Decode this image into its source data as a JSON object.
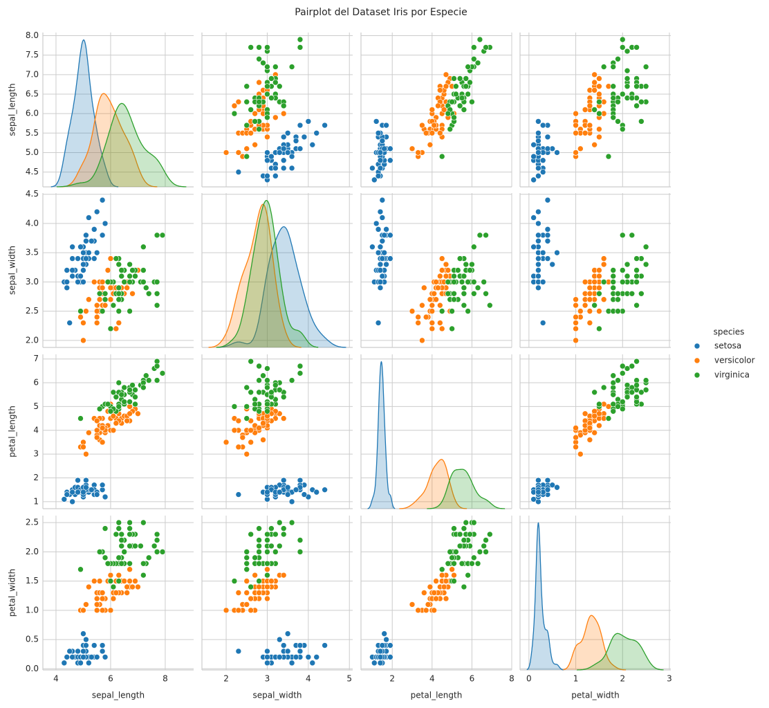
{
  "chart_data": {
    "type": "pairplot",
    "title": "Pairplot del Dataset Iris por Especie",
    "legend_title": "species",
    "legend_position": "right",
    "grid": true,
    "variables": [
      {
        "label": "sepal_length",
        "xlim": [
          3.52,
          9.04
        ],
        "xticks": [
          4,
          6,
          8
        ],
        "ylim": [
          4.12,
          8.08
        ],
        "yticks": [
          4.5,
          {
            "value": 5,
            "label": "5.0"
          },
          5.5,
          {
            "value": 6,
            "label": "6.0"
          },
          6.5,
          {
            "value": 7,
            "label": "7.0"
          },
          7.5,
          {
            "value": 8,
            "label": "8.0"
          }
        ]
      },
      {
        "label": "sepal_width",
        "xlim": [
          1.41,
          5.08
        ],
        "xticks": [
          2,
          3,
          4,
          5
        ],
        "ylim": [
          1.88,
          4.52
        ],
        "yticks": [
          {
            "value": 2,
            "label": "2.0"
          },
          2.5,
          {
            "value": 3,
            "label": "3.0"
          },
          3.5,
          {
            "value": 4,
            "label": "4.0"
          },
          4.5
        ]
      },
      {
        "label": "petal_length",
        "xlim": [
          0.43,
          8.0
        ],
        "xticks": [
          2,
          4,
          6,
          8
        ],
        "ylim": [
          0.705,
          7.195
        ],
        "yticks": [
          1,
          2,
          3,
          4,
          5,
          6,
          7
        ]
      },
      {
        "label": "petal_width",
        "xlim": [
          -0.19,
          3.03
        ],
        "xticks": [
          0,
          1,
          2,
          3
        ],
        "ylim": [
          -0.02,
          2.62
        ],
        "yticks": [
          {
            "value": 0,
            "label": "0.0"
          },
          0.5,
          {
            "value": 1,
            "label": "1.0"
          },
          1.5,
          {
            "value": 2,
            "label": "2.0"
          },
          2.5
        ]
      }
    ],
    "series": [
      {
        "name": "setosa",
        "color": "#1f77b4",
        "columns": [
          [
            5.1,
            4.9,
            4.7,
            4.6,
            5.0,
            5.4,
            4.6,
            5.0,
            4.4,
            4.9,
            5.4,
            4.8,
            4.8,
            4.3,
            5.8,
            5.7,
            5.4,
            5.1,
            5.7,
            5.1,
            5.4,
            5.1,
            4.6,
            5.1,
            4.8,
            5.0,
            5.0,
            5.2,
            5.2,
            4.7,
            4.8,
            5.4,
            5.2,
            5.5,
            4.9,
            5.0,
            5.5,
            4.9,
            4.4,
            5.1,
            5.0,
            4.5,
            4.4,
            5.0,
            5.1,
            4.8,
            5.1,
            4.6,
            5.3,
            5.0
          ],
          [
            3.5,
            3.0,
            3.2,
            3.1,
            3.6,
            3.9,
            3.4,
            3.4,
            2.9,
            3.1,
            3.7,
            3.4,
            3.0,
            3.0,
            4.0,
            4.4,
            3.9,
            3.5,
            3.8,
            3.8,
            3.4,
            3.7,
            3.6,
            3.3,
            3.4,
            3.0,
            3.4,
            3.5,
            3.4,
            3.2,
            3.1,
            3.4,
            4.1,
            4.2,
            3.1,
            3.2,
            3.5,
            3.6,
            3.0,
            3.4,
            3.5,
            2.3,
            3.2,
            3.5,
            3.8,
            3.0,
            3.8,
            3.2,
            3.7,
            3.3
          ],
          [
            1.4,
            1.4,
            1.3,
            1.5,
            1.4,
            1.7,
            1.4,
            1.5,
            1.4,
            1.5,
            1.5,
            1.6,
            1.4,
            1.1,
            1.2,
            1.5,
            1.3,
            1.4,
            1.7,
            1.5,
            1.7,
            1.5,
            1.0,
            1.7,
            1.9,
            1.6,
            1.6,
            1.5,
            1.4,
            1.6,
            1.6,
            1.5,
            1.5,
            1.4,
            1.5,
            1.2,
            1.3,
            1.4,
            1.3,
            1.5,
            1.3,
            1.3,
            1.3,
            1.6,
            1.9,
            1.4,
            1.6,
            1.4,
            1.5,
            1.4
          ],
          [
            0.2,
            0.2,
            0.2,
            0.2,
            0.2,
            0.4,
            0.3,
            0.2,
            0.2,
            0.1,
            0.2,
            0.2,
            0.1,
            0.1,
            0.2,
            0.4,
            0.4,
            0.3,
            0.3,
            0.3,
            0.2,
            0.4,
            0.2,
            0.5,
            0.2,
            0.2,
            0.4,
            0.2,
            0.2,
            0.2,
            0.2,
            0.4,
            0.1,
            0.2,
            0.2,
            0.2,
            0.2,
            0.1,
            0.2,
            0.2,
            0.3,
            0.3,
            0.2,
            0.6,
            0.4,
            0.3,
            0.2,
            0.2,
            0.2,
            0.2
          ]
        ]
      },
      {
        "name": "versicolor",
        "color": "#ff7f0e",
        "columns": [
          [
            7.0,
            6.4,
            6.9,
            5.5,
            6.5,
            5.7,
            6.3,
            4.9,
            6.6,
            5.2,
            5.0,
            5.9,
            6.0,
            6.1,
            5.6,
            6.7,
            5.6,
            5.8,
            6.2,
            5.6,
            5.9,
            6.1,
            6.3,
            6.1,
            6.4,
            6.6,
            6.8,
            6.7,
            6.0,
            5.7,
            5.5,
            5.5,
            5.8,
            6.0,
            5.4,
            6.0,
            6.7,
            6.3,
            5.6,
            5.5,
            5.5,
            6.1,
            5.8,
            5.0,
            5.6,
            5.7,
            5.7,
            6.2,
            5.1,
            5.7
          ],
          [
            3.2,
            3.2,
            3.1,
            2.3,
            2.8,
            2.8,
            3.3,
            2.4,
            2.9,
            2.7,
            2.0,
            3.0,
            2.2,
            2.9,
            2.9,
            3.1,
            3.0,
            2.7,
            2.2,
            2.5,
            3.2,
            2.8,
            2.5,
            2.8,
            2.9,
            3.0,
            2.8,
            3.0,
            2.9,
            2.6,
            2.4,
            2.4,
            2.7,
            2.7,
            3.0,
            3.4,
            3.1,
            2.3,
            3.0,
            2.5,
            2.6,
            3.0,
            2.6,
            2.3,
            2.7,
            3.0,
            2.9,
            2.9,
            2.5,
            2.8
          ],
          [
            4.7,
            4.5,
            4.9,
            4.0,
            4.6,
            4.5,
            4.7,
            3.3,
            4.6,
            3.9,
            3.5,
            4.2,
            4.0,
            4.7,
            3.6,
            4.4,
            4.5,
            4.1,
            4.5,
            3.9,
            4.8,
            4.0,
            4.9,
            4.7,
            4.3,
            4.4,
            4.8,
            5.0,
            4.5,
            3.5,
            3.8,
            3.7,
            3.9,
            5.1,
            4.5,
            4.5,
            4.7,
            4.4,
            4.1,
            4.0,
            4.4,
            4.6,
            4.0,
            3.3,
            4.2,
            4.2,
            4.2,
            4.3,
            3.0,
            4.1
          ],
          [
            1.4,
            1.5,
            1.5,
            1.3,
            1.5,
            1.3,
            1.6,
            1.0,
            1.3,
            1.4,
            1.0,
            1.5,
            1.0,
            1.4,
            1.3,
            1.4,
            1.5,
            1.0,
            1.5,
            1.1,
            1.8,
            1.3,
            1.5,
            1.2,
            1.3,
            1.4,
            1.4,
            1.7,
            1.5,
            1.0,
            1.1,
            1.0,
            1.2,
            1.6,
            1.5,
            1.6,
            1.5,
            1.3,
            1.3,
            1.3,
            1.2,
            1.4,
            1.2,
            1.0,
            1.3,
            1.2,
            1.3,
            1.3,
            1.1,
            1.3
          ]
        ]
      },
      {
        "name": "virginica",
        "color": "#2ca02c",
        "columns": [
          [
            6.3,
            5.8,
            7.1,
            6.3,
            6.5,
            7.6,
            4.9,
            7.3,
            6.7,
            7.2,
            6.5,
            6.4,
            6.8,
            5.7,
            5.8,
            6.4,
            6.5,
            7.7,
            7.7,
            6.0,
            6.9,
            5.6,
            7.7,
            6.3,
            6.7,
            7.2,
            6.2,
            6.1,
            6.4,
            7.2,
            7.4,
            7.9,
            6.4,
            6.3,
            6.1,
            7.7,
            6.3,
            6.4,
            6.0,
            6.9,
            6.7,
            6.9,
            5.8,
            6.8,
            6.7,
            6.7,
            6.3,
            6.5,
            6.2,
            5.9
          ],
          [
            3.3,
            2.7,
            3.0,
            2.9,
            3.0,
            3.0,
            2.5,
            2.9,
            2.5,
            3.6,
            3.2,
            2.7,
            3.0,
            2.5,
            2.8,
            3.2,
            3.0,
            3.8,
            2.6,
            2.2,
            3.2,
            2.8,
            2.8,
            2.7,
            3.3,
            3.2,
            2.8,
            3.0,
            2.8,
            3.0,
            2.8,
            3.8,
            2.8,
            2.8,
            2.6,
            3.0,
            3.4,
            3.1,
            3.0,
            3.1,
            3.1,
            3.1,
            2.7,
            3.2,
            3.3,
            3.0,
            2.5,
            3.0,
            3.4,
            3.0
          ],
          [
            6.0,
            5.1,
            5.9,
            5.6,
            5.8,
            6.6,
            4.5,
            6.3,
            5.8,
            6.1,
            5.1,
            5.3,
            5.5,
            5.0,
            5.1,
            5.3,
            5.5,
            6.7,
            6.9,
            5.0,
            5.7,
            4.9,
            6.7,
            4.9,
            5.7,
            6.0,
            4.8,
            4.9,
            5.6,
            5.8,
            6.1,
            6.4,
            5.6,
            5.1,
            5.6,
            6.1,
            5.6,
            5.5,
            4.8,
            5.4,
            5.6,
            5.1,
            5.1,
            5.9,
            5.7,
            5.2,
            5.0,
            5.2,
            5.4,
            5.1
          ],
          [
            2.5,
            1.9,
            2.1,
            1.8,
            2.2,
            2.1,
            1.7,
            1.8,
            1.8,
            2.5,
            2.0,
            1.9,
            2.1,
            2.0,
            2.4,
            2.3,
            1.8,
            2.2,
            2.3,
            1.5,
            2.3,
            2.0,
            2.0,
            1.8,
            2.1,
            1.8,
            1.8,
            1.8,
            2.1,
            1.6,
            1.9,
            2.0,
            2.2,
            1.5,
            1.4,
            2.3,
            2.4,
            1.8,
            1.8,
            2.1,
            2.4,
            2.3,
            1.9,
            2.3,
            2.5,
            2.3,
            1.9,
            2.0,
            2.3,
            1.8
          ]
        ]
      }
    ]
  }
}
